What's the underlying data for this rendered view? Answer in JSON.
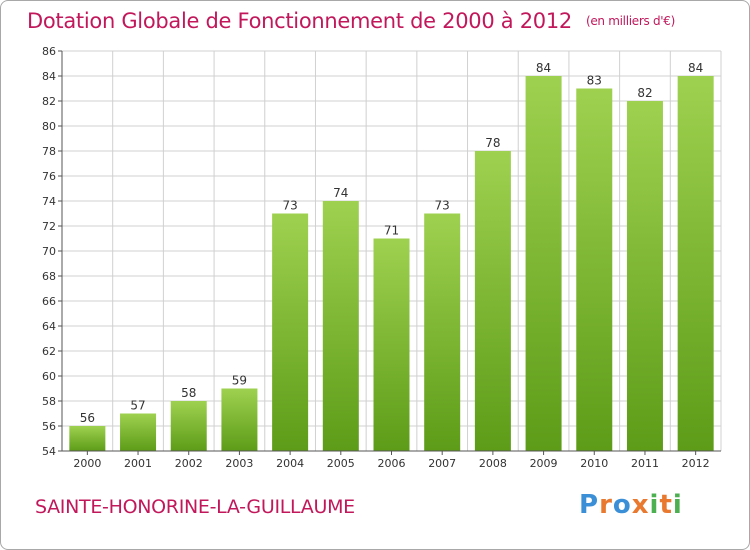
{
  "title": "Dotation Globale de Fonctionnement de 2000 à 2012",
  "unit": "(en milliers d'€)",
  "commune": "SAINTE-HONORINE-LA-GUILLAUME",
  "logo": {
    "letters": [
      "P",
      "r",
      "o",
      "x",
      "i",
      "t",
      "i"
    ],
    "colors": [
      "#3b8fd6",
      "#e8792f",
      "#3b8fd6",
      "#e8792f",
      "#4caf50",
      "#e8792f",
      "#4caf50"
    ]
  },
  "colors": {
    "bar_top": "#9ed14f",
    "bar_bottom": "#5d9c18",
    "title": "#c2185b"
  },
  "chart_data": {
    "type": "bar",
    "categories": [
      "2000",
      "2001",
      "2002",
      "2003",
      "2004",
      "2005",
      "2006",
      "2007",
      "2008",
      "2009",
      "2010",
      "2011",
      "2012"
    ],
    "values": [
      56,
      57,
      58,
      59,
      73,
      74,
      71,
      73,
      78,
      84,
      83,
      82,
      84
    ],
    "value_labels": [
      "56",
      "57",
      "58",
      "59",
      "73",
      "74",
      "71",
      "73",
      "78",
      "84",
      "83",
      "82",
      "84"
    ],
    "ylim": [
      54,
      86
    ],
    "yticks": [
      "54",
      "56",
      "58",
      "60",
      "62",
      "64",
      "66",
      "68",
      "70",
      "72",
      "74",
      "76",
      "78",
      "80",
      "82",
      "84",
      "86"
    ],
    "grid": true
  }
}
